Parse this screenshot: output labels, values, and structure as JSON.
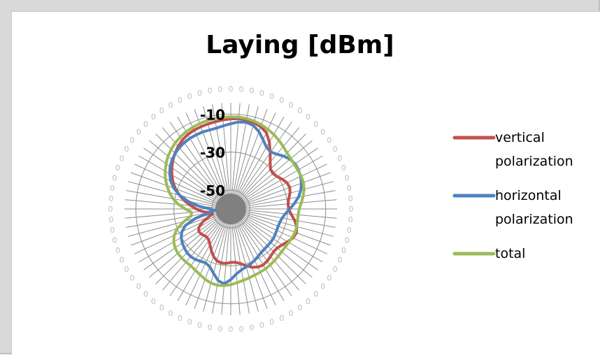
{
  "chart_data": {
    "type": "radar",
    "title": "Laying [dBm]",
    "angle_labels": [
      "0",
      "0",
      "0",
      "0",
      "0",
      "0",
      "0",
      "0",
      "0",
      "0",
      "0",
      "0",
      "0",
      "0",
      "0",
      "0",
      "0",
      "0",
      "0",
      "0",
      "0",
      "0",
      "0",
      "0",
      "0",
      "0",
      "0",
      "0",
      "0",
      "0",
      "0",
      "0",
      "0",
      "0",
      "0",
      "0",
      "0",
      "0",
      "0",
      "0",
      "0",
      "0",
      "0",
      "0",
      "0",
      "0",
      "0",
      "0",
      "0",
      "0",
      "0",
      "0",
      "0",
      "0",
      "0",
      "0",
      "0",
      "0",
      "0",
      "0",
      "0",
      "0",
      "0",
      "0",
      "0",
      "0",
      "0",
      "0",
      "0",
      "0",
      "0",
      "0"
    ],
    "radial_ticks": [
      -10,
      -30,
      -50
    ],
    "radial_tick_labels": [
      "-10",
      "-30",
      "-50"
    ],
    "rmin": -60,
    "rmax": -4,
    "grid": true,
    "legend_position": "right",
    "series": [
      {
        "name": "vertical polarization",
        "color": "#c0504d",
        "values": [
          -12.5,
          -12.2,
          -12.4,
          -12.9,
          -13.9,
          -15.6,
          -19.3,
          -23.8,
          -27.7,
          -30.4,
          -31.0,
          -30.2,
          -28.7,
          -27.3,
          -26.9,
          -27.7,
          -29.0,
          -29.7,
          -29.5,
          -28.1,
          -25.9,
          -24.0,
          -23.2,
          -23.8,
          -25.4,
          -27.0,
          -28.0,
          -28.1,
          -27.4,
          -26.5,
          -25.9,
          -26.2,
          -27.3,
          -29.0,
          -30.8,
          -31.8,
          -31.8,
          -31.2,
          -31.1,
          -31.7,
          -33.4,
          -35.8,
          -38.1,
          -39.8,
          -40.5,
          -40.2,
          -39.5,
          -39.4,
          -40.6,
          -43.6,
          -47.4,
          -50.1,
          -48.1,
          -44.9,
          -41.8,
          -38.7,
          -35.3,
          -32.0,
          -29.0,
          -26.4,
          -24.2,
          -22.1,
          -20.2,
          -18.5,
          -16.9,
          -15.6,
          -14.7,
          -14.2,
          -13.9,
          -13.6,
          -13.3,
          -12.9
        ]
      },
      {
        "name": "horizontal polarization",
        "color": "#4f81bd",
        "values": [
          -15.1,
          -14.0,
          -13.6,
          -14.4,
          -16.6,
          -19.7,
          -22.4,
          -23.3,
          -22.3,
          -20.6,
          -19.2,
          -18.6,
          -18.8,
          -19.4,
          -20.4,
          -21.8,
          -23.7,
          -26.3,
          -28.9,
          -31.1,
          -32.5,
          -33.2,
          -33.4,
          -33.3,
          -33.0,
          -32.7,
          -32.6,
          -32.6,
          -32.4,
          -32.0,
          -31.2,
          -30.2,
          -29.2,
          -28.4,
          -27.4,
          -25.6,
          -22.7,
          -20.4,
          -21.6,
          -24.9,
          -27.6,
          -28.6,
          -28.2,
          -27.5,
          -27.2,
          -27.4,
          -28.0,
          -28.8,
          -29.9,
          -31.6,
          -34.6,
          -40.7,
          -48.3,
          -51.7,
          -49.0,
          -43.1,
          -37.2,
          -32.1,
          -28.1,
          -25.1,
          -22.8,
          -21.0,
          -19.6,
          -18.6,
          -17.8,
          -17.3,
          -17.0,
          -16.9,
          -16.8,
          -16.9,
          -16.7,
          -16.0
        ]
      },
      {
        "name": "total",
        "color": "#9bbb59",
        "values": [
          -11.4,
          -11.4,
          -11.6,
          -12.1,
          -12.8,
          -13.7,
          -14.7,
          -15.8,
          -17.0,
          -18.1,
          -18.8,
          -19.1,
          -19.2,
          -19.1,
          -19.3,
          -20.0,
          -21.3,
          -22.7,
          -23.9,
          -24.4,
          -24.3,
          -24.0,
          -24.0,
          -24.3,
          -24.7,
          -25.0,
          -25.0,
          -24.7,
          -24.3,
          -23.9,
          -23.5,
          -23.2,
          -22.9,
          -22.4,
          -21.8,
          -21.0,
          -20.1,
          -19.4,
          -19.1,
          -19.6,
          -20.5,
          -21.7,
          -22.7,
          -23.3,
          -23.4,
          -23.4,
          -23.6,
          -24.2,
          -25.3,
          -27.1,
          -30.0,
          -34.5,
          -38.8,
          -39.3,
          -36.1,
          -32.3,
          -29.1,
          -26.5,
          -24.2,
          -22.0,
          -20.1,
          -18.4,
          -16.8,
          -15.6,
          -14.5,
          -13.7,
          -13.0,
          -12.5,
          -12.1,
          -11.8,
          -11.6,
          -11.5
        ]
      }
    ]
  },
  "legend": [
    {
      "lines": [
        "vertical",
        "polarization"
      ],
      "color": "#c0504d"
    },
    {
      "lines": [
        "horizontal",
        "polarization"
      ],
      "color": "#4f81bd"
    },
    {
      "lines": [
        "total"
      ],
      "color": "#9bbb59"
    }
  ]
}
